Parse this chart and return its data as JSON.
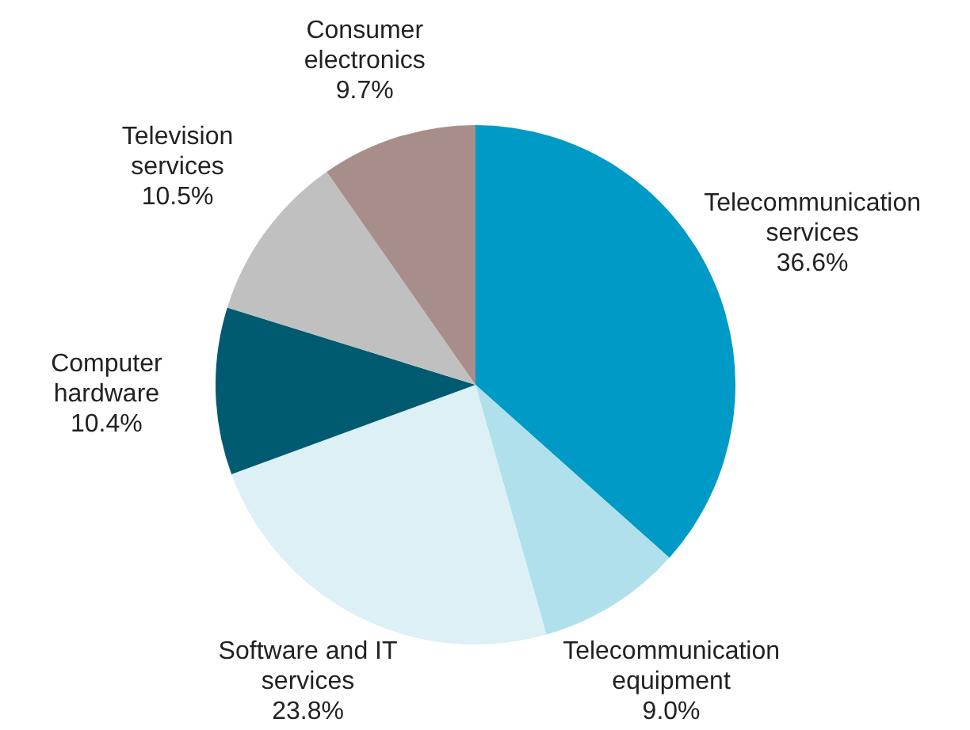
{
  "chart_data": {
    "type": "pie",
    "categories": [
      "Telecommunication services",
      "Telecommunication equipment",
      "Software and IT services",
      "Computer hardware",
      "Television services",
      "Consumer electronics"
    ],
    "values": [
      36.6,
      9.0,
      23.8,
      10.4,
      10.5,
      9.7
    ],
    "colors": [
      "#009ac7",
      "#b0e0ec",
      "#dcf0f6",
      "#005a70",
      "#c0c0c0",
      "#a88e8a"
    ],
    "value_labels": [
      "36.6%",
      "9.0%",
      "23.8%",
      "10.4%",
      "10.5%",
      "9.7%"
    ],
    "legend": false
  }
}
